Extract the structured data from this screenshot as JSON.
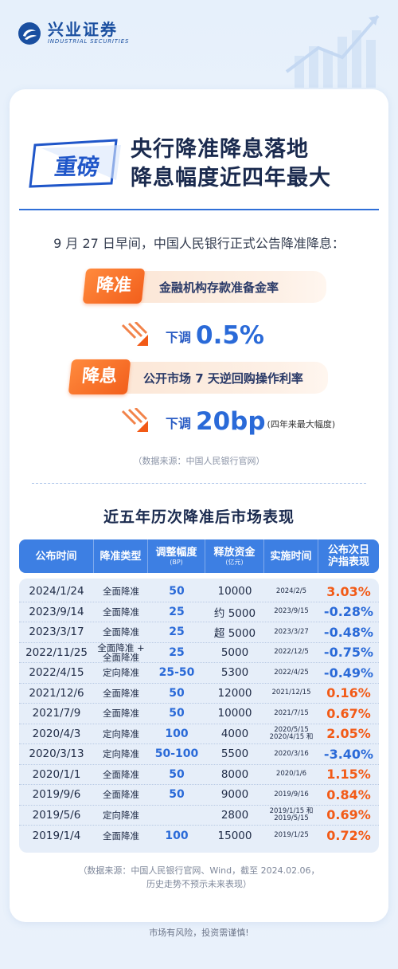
{
  "header": {
    "logo_cn": "兴业证券",
    "logo_en": "INDUSTRIAL SECURITIES"
  },
  "title": {
    "badge": "重磅",
    "line1": "央行降准降息落地",
    "line2": "降息幅度近四年最大"
  },
  "intro": "9 月 27 日早间，中国人民银行正式公告降准降息：",
  "cut_rrr": {
    "label": "降准",
    "text": "金融机构存款准备金率",
    "down_label": "下调",
    "value": "0.5%"
  },
  "cut_rate": {
    "label": "降息",
    "text": "公开市场 7 天逆回购操作利率",
    "down_label": "下调",
    "value": "20bp",
    "note": "(四年来最大幅度)"
  },
  "source1": "（数据来源：中国人民银行官网）",
  "section_title": "近五年历次降准后市场表现",
  "table": {
    "headers": [
      {
        "title": "公布时间",
        "sub": ""
      },
      {
        "title": "降准类型",
        "sub": ""
      },
      {
        "title": "调整幅度",
        "sub": "(BP)"
      },
      {
        "title": "释放资金",
        "sub": "(亿元)"
      },
      {
        "title": "实施时间",
        "sub": ""
      },
      {
        "title": "公布次日",
        "sub": "沪指表现"
      }
    ],
    "rows": [
      {
        "date": "2024/1/24",
        "type": "全面降准",
        "type2": "",
        "bp": "50",
        "fund": "10000",
        "impl": "2024/2/5",
        "impl2": "",
        "perf": "3.03%",
        "sign": "pos"
      },
      {
        "date": "2023/9/14",
        "type": "全面降准",
        "type2": "",
        "bp": "25",
        "fund": "约 5000",
        "impl": "2023/9/15",
        "impl2": "",
        "perf": "-0.28%",
        "sign": "neg"
      },
      {
        "date": "2023/3/17",
        "type": "全面降准",
        "type2": "",
        "bp": "25",
        "fund": "超 5000",
        "impl": "2023/3/27",
        "impl2": "",
        "perf": "-0.48%",
        "sign": "neg"
      },
      {
        "date": "2022/11/25",
        "type": "全面降准",
        "type2": "全面降准 +",
        "bp": "25",
        "fund": "5000",
        "impl": "2022/12/5",
        "impl2": "",
        "perf": "-0.75%",
        "sign": "neg"
      },
      {
        "date": "2022/4/15",
        "type": "定向降准",
        "type2": "",
        "bp": "25-50",
        "fund": "5300",
        "impl": "2022/4/25",
        "impl2": "",
        "perf": "-0.49%",
        "sign": "neg"
      },
      {
        "date": "2021/12/6",
        "type": "全面降准",
        "type2": "",
        "bp": "50",
        "fund": "12000",
        "impl": "2021/12/15",
        "impl2": "",
        "perf": "0.16%",
        "sign": "pos"
      },
      {
        "date": "2021/7/9",
        "type": "全面降准",
        "type2": "",
        "bp": "50",
        "fund": "10000",
        "impl": "2021/7/15",
        "impl2": "",
        "perf": "0.67%",
        "sign": "pos"
      },
      {
        "date": "2020/4/3",
        "type": "定向降准",
        "type2": "",
        "bp": "100",
        "fund": "4000",
        "impl": "2020/4/15 和",
        "impl2": "2020/5/15",
        "perf": "2.05%",
        "sign": "pos"
      },
      {
        "date": "2020/3/13",
        "type": "定向降准",
        "type2": "",
        "bp": "50-100",
        "fund": "5500",
        "impl": "2020/3/16",
        "impl2": "",
        "perf": "-3.40%",
        "sign": "neg"
      },
      {
        "date": "2020/1/1",
        "type": "全面降准",
        "type2": "",
        "bp": "50",
        "fund": "8000",
        "impl": "2020/1/6",
        "impl2": "",
        "perf": "1.15%",
        "sign": "pos"
      },
      {
        "date": "2019/9/6",
        "type": "全面降准",
        "type2": "",
        "bp": "50",
        "fund": "9000",
        "impl": "2019/9/16",
        "impl2": "",
        "perf": "0.84%",
        "sign": "pos"
      },
      {
        "date": "2019/5/6",
        "type": "定向降准",
        "type2": "",
        "bp": "",
        "fund": "2800",
        "impl": "2019/5/15",
        "impl2": "2019/1/15 和",
        "perf": "0.69%",
        "sign": "pos"
      },
      {
        "date": "2019/1/4",
        "type": "全面降准",
        "type2": "",
        "bp": "100",
        "fund": "15000",
        "impl": "2019/1/25",
        "impl2": "",
        "perf": "0.72%",
        "sign": "pos"
      }
    ]
  },
  "source2_line1": "（数据来源：中国人民银行官网、Wind，截至 2024.02.06，",
  "source2_line2": "历史走势不预示未来表现）",
  "footer": "市场有风险，投资需谨慎!",
  "colors": {
    "brand_blue": "#1a4fa0",
    "accent_blue": "#2a6ad8",
    "header_blue": "#3d7fe3",
    "orange": "#f25a16"
  }
}
